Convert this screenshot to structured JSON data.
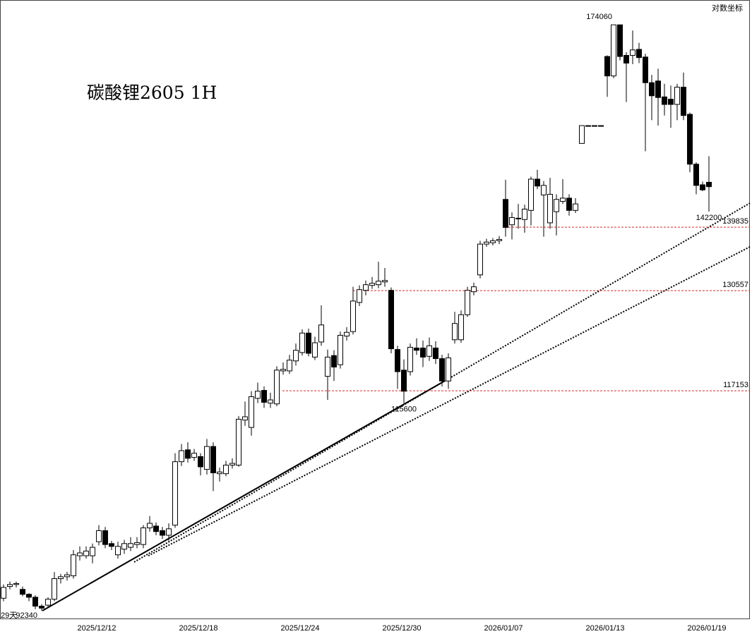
{
  "chart_data": {
    "type": "candlestick",
    "title": "碳酸锂2605 1H",
    "scale_label": "对数坐标",
    "period_label": "29天",
    "log_scale": true,
    "ylim": [
      91500,
      178800
    ],
    "up_color": "#ffffff",
    "down_color": "#000000",
    "categories": [
      null,
      null,
      null,
      null,
      null,
      null,
      null,
      null,
      null,
      null,
      null,
      null,
      null,
      null,
      null,
      "2025/12/12",
      null,
      null,
      null,
      null,
      null,
      null,
      null,
      null,
      null,
      null,
      null,
      null,
      null,
      null,
      null,
      "2025/12/18",
      null,
      null,
      null,
      null,
      null,
      null,
      null,
      null,
      null,
      null,
      null,
      null,
      null,
      null,
      null,
      "2025/12/24",
      null,
      null,
      null,
      null,
      null,
      null,
      null,
      null,
      null,
      null,
      null,
      null,
      null,
      null,
      null,
      "2025/12/30",
      null,
      null,
      null,
      null,
      null,
      null,
      null,
      null,
      null,
      null,
      null,
      null,
      null,
      null,
      null,
      "2026/01/07",
      null,
      null,
      null,
      null,
      null,
      null,
      null,
      null,
      null,
      null,
      null,
      null,
      null,
      null,
      null,
      "2026/01/13",
      null,
      null,
      null,
      null,
      null,
      null,
      null,
      null,
      null,
      null,
      null,
      null,
      null,
      null,
      null,
      "2026/01/19"
    ],
    "open": [
      93600,
      94800,
      95000,
      94500,
      94000,
      93700,
      92800,
      92900,
      93500,
      95600,
      95800,
      95900,
      98000,
      98000,
      98000,
      99500,
      100700,
      99300,
      98100,
      98700,
      98900,
      99200,
      99200,
      101000,
      101200,
      100700,
      100200,
      101300,
      108500,
      109900,
      109000,
      109100,
      107600,
      110300,
      107100,
      107100,
      108100,
      108100,
      113500,
      112600,
      116200,
      117200,
      115600,
      115500,
      119700,
      119700,
      121000,
      122100,
      124700,
      121500,
      123500,
      119000,
      121700,
      120500,
      124300,
      124900,
      128900,
      130600,
      131300,
      131400,
      131800,
      130600,
      122500,
      119800,
      119600,
      122700,
      122700,
      121600,
      122700,
      121300,
      118400,
      123800,
      123800,
      127200,
      130400,
      132800,
      137300,
      137500,
      137800,
      144100,
      140200,
      141100,
      141000,
      142400,
      147300,
      144800,
      140500,
      142200,
      143800,
      144300,
      142400,
      153100,
      156080,
      156080,
      156080,
      168200,
      164700,
      174060,
      168400,
      168400,
      169500,
      168100,
      163500,
      163800,
      161000,
      160600,
      159700,
      162700,
      158000,
      149700,
      146400,
      146800
    ],
    "high": [
      95000,
      95300,
      95300,
      94800,
      94100,
      93900,
      93000,
      93700,
      96300,
      96100,
      96300,
      98600,
      99000,
      99000,
      99300,
      101300,
      101100,
      99600,
      99500,
      99700,
      100000,
      100000,
      101300,
      102300,
      101600,
      101100,
      101500,
      109500,
      110600,
      110800,
      110000,
      109500,
      111200,
      110800,
      107800,
      108600,
      108900,
      114000,
      115800,
      117100,
      118200,
      117700,
      116900,
      120300,
      120800,
      121800,
      123300,
      125200,
      125300,
      124200,
      128500,
      122500,
      122400,
      124900,
      125500,
      131100,
      131300,
      132000,
      132500,
      134700,
      133800,
      131000,
      123000,
      121200,
      123300,
      124000,
      123700,
      124100,
      123600,
      121800,
      122000,
      127600,
      127800,
      131100,
      131700,
      137800,
      138100,
      138200,
      138500,
      147200,
      142100,
      143400,
      143300,
      147700,
      148800,
      147000,
      147500,
      144900,
      147300,
      144900,
      144300,
      156080,
      156080,
      156080,
      156080,
      168400,
      174060,
      174060,
      169000,
      173000,
      170700,
      168700,
      164900,
      166000,
      163300,
      163000,
      163300,
      165300,
      158300,
      150000,
      146900,
      151000
    ],
    "low": [
      93300,
      94500,
      94700,
      93800,
      93300,
      92500,
      92340,
      92600,
      93300,
      95100,
      95400,
      95600,
      97500,
      97700,
      97200,
      99100,
      98800,
      98600,
      97700,
      98200,
      98500,
      98800,
      98800,
      100600,
      100200,
      99800,
      99600,
      101000,
      108000,
      108400,
      108600,
      106900,
      107000,
      105100,
      106200,
      106800,
      107700,
      107900,
      112800,
      111600,
      115600,
      115000,
      115000,
      115200,
      119200,
      119300,
      120400,
      121700,
      121600,
      121100,
      123000,
      116000,
      118400,
      120000,
      123700,
      124500,
      128400,
      129900,
      130800,
      130900,
      131100,
      122000,
      117400,
      115600,
      119100,
      121800,
      120200,
      121000,
      120600,
      117700,
      117400,
      123300,
      123400,
      126900,
      129900,
      132300,
      136900,
      137100,
      137300,
      138400,
      138000,
      139600,
      139000,
      140100,
      145700,
      138400,
      139600,
      138600,
      143400,
      141600,
      142000,
      153100,
      156080,
      156080,
      156080,
      161000,
      164300,
      167500,
      160100,
      166800,
      167000,
      151800,
      157000,
      156100,
      157800,
      155700,
      157000,
      157000,
      148400,
      144900,
      145400,
      142200
    ],
    "close": [
      94700,
      95000,
      95100,
      94000,
      93700,
      92800,
      92600,
      93500,
      95600,
      95800,
      96000,
      98100,
      98300,
      98500,
      98900,
      100700,
      99200,
      99000,
      99000,
      99300,
      99300,
      99400,
      101000,
      101500,
      100600,
      100200,
      100900,
      108500,
      109800,
      108900,
      109500,
      107900,
      110300,
      107200,
      107300,
      108100,
      108300,
      113600,
      113900,
      116400,
      117100,
      115700,
      116000,
      119800,
      119900,
      121100,
      122400,
      124700,
      122000,
      123400,
      125800,
      121500,
      120200,
      124400,
      124800,
      129100,
      130700,
      131400,
      131600,
      131900,
      132000,
      122600,
      119600,
      117100,
      122800,
      122400,
      121500,
      123000,
      121300,
      118400,
      121400,
      126000,
      127200,
      130600,
      131100,
      137300,
      137600,
      137800,
      138000,
      139800,
      141300,
      141200,
      142600,
      147300,
      146200,
      146300,
      144900,
      144100,
      144300,
      142400,
      143400,
      156080,
      156080,
      156080,
      156080,
      164700,
      174060,
      168200,
      167000,
      169400,
      168000,
      163500,
      161200,
      160900,
      159700,
      159700,
      162700,
      157800,
      149700,
      146300,
      145600,
      146100
    ],
    "levels": [
      {
        "value": 139835,
        "color": "#d42a2a"
      },
      {
        "value": 130557,
        "color": "#d42a2a"
      },
      {
        "value": 117153,
        "color": "#d42a2a"
      }
    ]
  }
}
